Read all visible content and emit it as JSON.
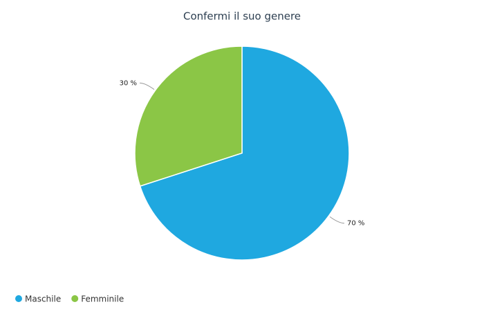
{
  "chart_data": {
    "type": "pie",
    "title": "Confermi il suo genere",
    "categories": [
      "Maschile",
      "Femminile"
    ],
    "values": [
      70,
      30
    ],
    "value_labels": [
      "70 %",
      "30 %"
    ],
    "colors": [
      "#1fa8e0",
      "#8bc646"
    ],
    "legend": "bottom-left"
  }
}
